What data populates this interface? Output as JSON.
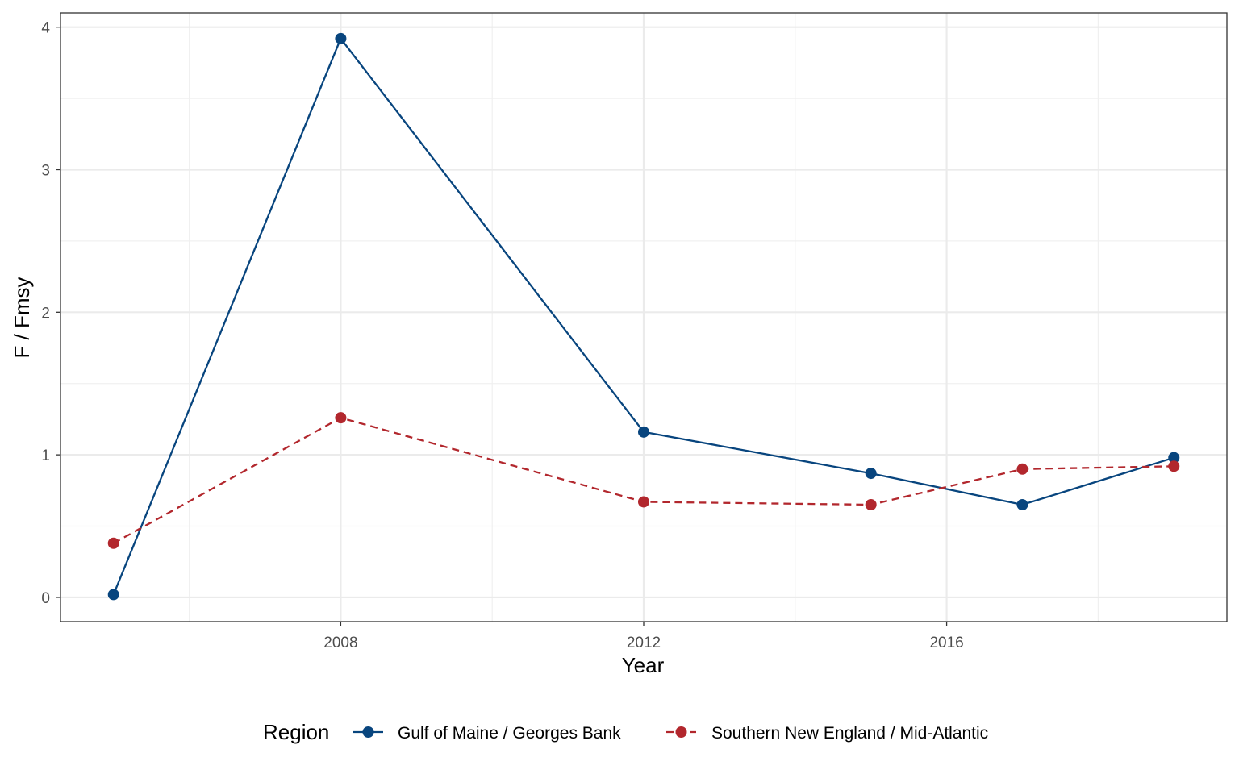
{
  "chart_data": {
    "type": "line",
    "xlabel": "Year",
    "ylabel": "F / Fmsy",
    "xlim": [
      2004.3,
      2019.7
    ],
    "ylim": [
      -0.17,
      4.1
    ],
    "x_ticks": [
      2008,
      2012,
      2016
    ],
    "x_tick_labels": [
      "2008",
      "2012",
      "2016"
    ],
    "y_ticks": [
      0,
      1,
      2,
      3,
      4
    ],
    "y_tick_labels": [
      "0",
      "1",
      "2",
      "3",
      "4"
    ],
    "grid": true,
    "legend": {
      "title": "Region",
      "position": "bottom"
    },
    "series": [
      {
        "name": "Gulf of Maine / Georges Bank",
        "color": "#08457e",
        "dash": "solid",
        "x": [
          2005,
          2008,
          2012,
          2015,
          2017,
          2019
        ],
        "y": [
          0.02,
          3.92,
          1.16,
          0.87,
          0.65,
          0.98
        ]
      },
      {
        "name": "Southern New England / Mid-Atlantic",
        "color": "#b2272d",
        "dash": "dashed",
        "x": [
          2005,
          2008,
          2012,
          2015,
          2017,
          2019
        ],
        "y": [
          0.38,
          1.26,
          0.67,
          0.65,
          0.9,
          0.92
        ]
      }
    ]
  }
}
